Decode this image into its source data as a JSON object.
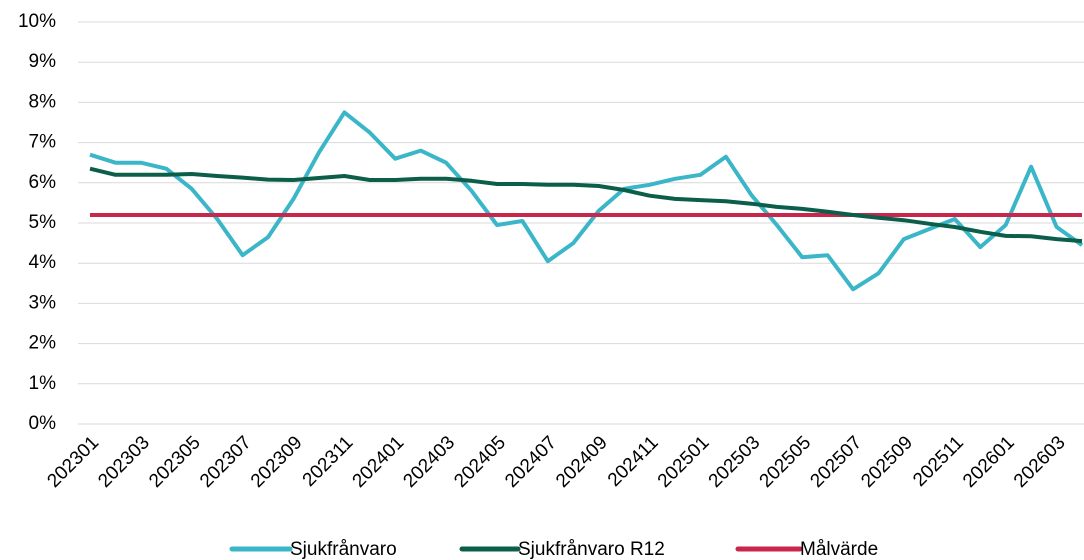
{
  "chart_data": {
    "type": "line",
    "categories": [
      "202301",
      null,
      "202303",
      null,
      "202305",
      null,
      "202307",
      null,
      "202309",
      null,
      "202311",
      null,
      "202401",
      null,
      "202403",
      null,
      "202405",
      null,
      "202407",
      null,
      "202409",
      null,
      "202411",
      null,
      "202501",
      null,
      "202503",
      null,
      "202505",
      null,
      "202507",
      null,
      "202509",
      null,
      "202511",
      null,
      "202601",
      null,
      "202603",
      null
    ],
    "series": [
      {
        "name": "Sjukfrånvaro",
        "color": "#3bb6c8",
        "values": [
          6.7,
          6.5,
          6.5,
          6.35,
          5.85,
          5.1,
          4.2,
          4.65,
          5.6,
          6.75,
          7.75,
          7.25,
          6.6,
          6.8,
          6.5,
          5.8,
          4.95,
          5.05,
          4.05,
          4.5,
          5.3,
          5.85,
          5.95,
          6.1,
          6.2,
          6.65,
          5.7,
          4.95,
          4.15,
          4.2,
          3.35,
          3.75,
          4.6,
          4.85,
          5.1,
          4.4,
          4.95,
          6.4,
          4.9,
          4.45
        ]
      },
      {
        "name": "Sjukfrånvaro R12",
        "color": "#0b5e4a",
        "values": [
          6.35,
          6.2,
          6.2,
          6.2,
          6.22,
          6.17,
          6.13,
          6.08,
          6.07,
          6.12,
          6.17,
          6.07,
          6.07,
          6.1,
          6.1,
          6.05,
          5.97,
          5.97,
          5.95,
          5.95,
          5.92,
          5.82,
          5.68,
          5.6,
          5.57,
          5.54,
          5.48,
          5.4,
          5.35,
          5.28,
          5.2,
          5.13,
          5.07,
          4.98,
          4.9,
          4.78,
          4.68,
          4.67,
          4.6,
          4.55
        ]
      },
      {
        "name": "Målvärde",
        "color": "#c8264a",
        "values": [
          5.2,
          5.2,
          5.2,
          5.2,
          5.2,
          5.2,
          5.2,
          5.2,
          5.2,
          5.2,
          5.2,
          5.2,
          5.2,
          5.2,
          5.2,
          5.2,
          5.2,
          5.2,
          5.2,
          5.2,
          5.2,
          5.2,
          5.2,
          5.2,
          5.2,
          5.2,
          5.2,
          5.2,
          5.2,
          5.2,
          5.2,
          5.2,
          5.2,
          5.2,
          5.2,
          5.2,
          5.2,
          5.2,
          5.2,
          5.2
        ]
      }
    ],
    "ylim": [
      0,
      10
    ],
    "yticks": [
      {
        "value": 0,
        "label": "0%"
      },
      {
        "value": 1,
        "label": "1%"
      },
      {
        "value": 2,
        "label": "2%"
      },
      {
        "value": 3,
        "label": "3%"
      },
      {
        "value": 4,
        "label": "4%"
      },
      {
        "value": 5,
        "label": "5%"
      },
      {
        "value": 6,
        "label": "6%"
      },
      {
        "value": 7,
        "label": "7%"
      },
      {
        "value": 8,
        "label": "8%"
      },
      {
        "value": 9,
        "label": "9%"
      },
      {
        "value": 10,
        "label": "10%"
      }
    ],
    "grid": true,
    "legend": "bottom"
  }
}
